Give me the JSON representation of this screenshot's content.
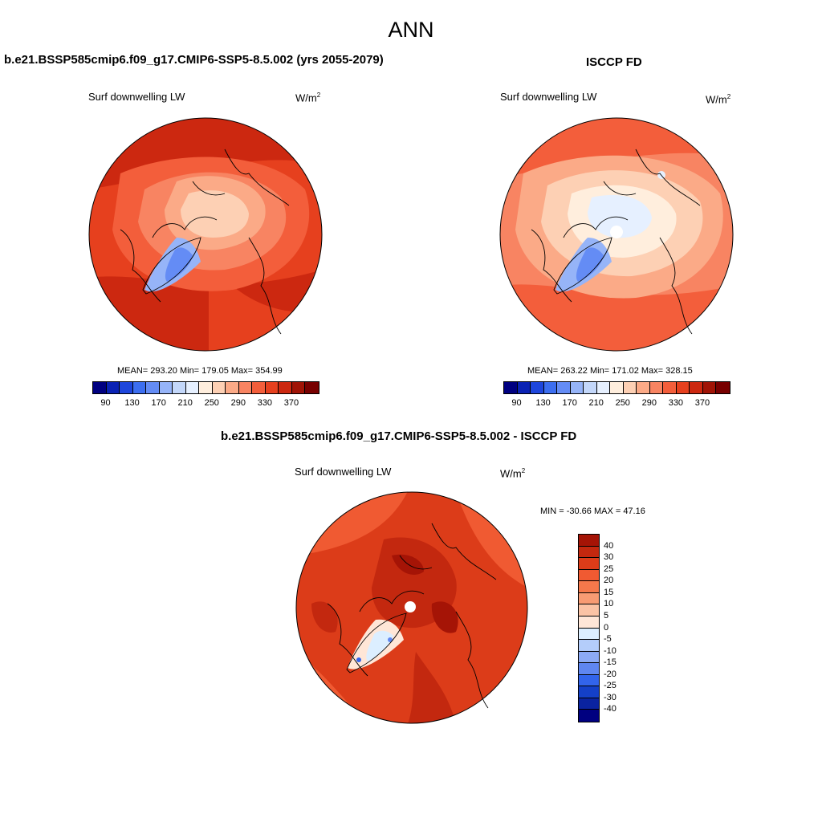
{
  "season": "ANN",
  "panels": {
    "model": {
      "title": "b.e21.BSSP585cmip6.f09_g17.CMIP6-SSP5-8.5.002 (yrs 2055-2079)",
      "variable": "Surf downwelling LW",
      "units_base": "W/m",
      "units_exp": "2",
      "stats": "MEAN= 293.20  Min= 179.05  Max= 354.99",
      "colorbar_ticks": [
        "90",
        "130",
        "170",
        "210",
        "250",
        "290",
        "330",
        "370"
      ]
    },
    "obs": {
      "title": "ISCCP FD",
      "variable": "Surf downwelling LW",
      "units_base": "W/m",
      "units_exp": "2",
      "stats": "MEAN= 263.22  Min= 171.02  Max= 328.15",
      "colorbar_ticks": [
        "90",
        "130",
        "170",
        "210",
        "250",
        "290",
        "330",
        "370"
      ]
    },
    "diff": {
      "title": "b.e21.BSSP585cmip6.f09_g17.CMIP6-SSP5-8.5.002 - ISCCP FD",
      "variable": "Surf downwelling LW",
      "units_base": "W/m",
      "units_exp": "2",
      "stats": "MIN = -30.66 MAX =  47.16",
      "colorbar_ticks": [
        "40",
        "30",
        "25",
        "20",
        "15",
        "10",
        "5",
        "0",
        "-5",
        "-10",
        "-15",
        "-20",
        "-25",
        "-30",
        "-40"
      ]
    }
  },
  "colors": {
    "abs_scale": [
      "#000080",
      "#0a22b4",
      "#1e46dc",
      "#3c6ef0",
      "#648cf5",
      "#96b4f8",
      "#c3d7fa",
      "#e6f0ff",
      "#ffeedd",
      "#fdd0b4",
      "#fbaa87",
      "#f88462",
      "#f35e3b",
      "#e6401e",
      "#cc2810",
      "#a01406",
      "#780000"
    ],
    "diff_scale": [
      "#a51406",
      "#c3280f",
      "#dc3c19",
      "#f05a32",
      "#f5784b",
      "#f89b73",
      "#fbc3a5",
      "#ffe6d7",
      "#dceeff",
      "#b4cdfa",
      "#8caaf5",
      "#5f86f0",
      "#3264eb",
      "#1440c8",
      "#0a23a0",
      "#000080"
    ]
  }
}
